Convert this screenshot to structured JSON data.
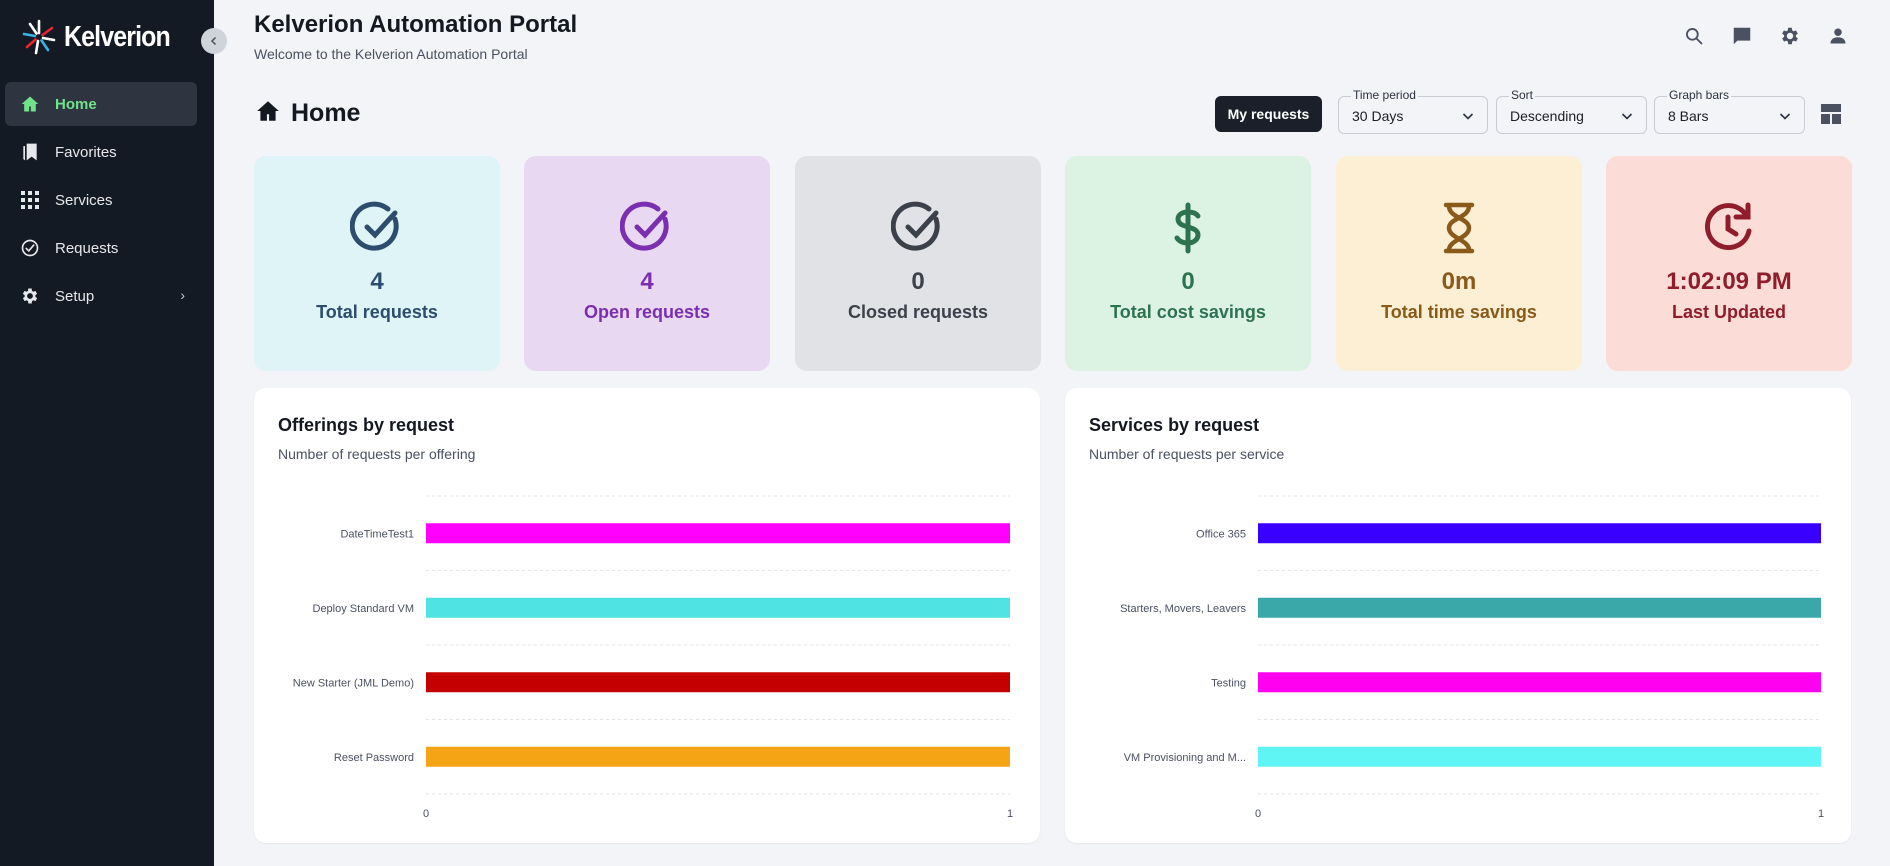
{
  "app": {
    "brand": "Kelverion",
    "title": "Kelverion Automation Portal",
    "subtitle": "Welcome to the Kelverion Automation Portal"
  },
  "sidebar": {
    "collapse_icon": "chevron-left-icon",
    "items": [
      {
        "label": "Home",
        "icon": "home-icon",
        "active": true
      },
      {
        "label": "Favorites",
        "icon": "bookmark-icon",
        "active": false
      },
      {
        "label": "Services",
        "icon": "grid-icon",
        "active": false
      },
      {
        "label": "Requests",
        "icon": "check-circle-icon",
        "active": false
      },
      {
        "label": "Setup",
        "icon": "gear-icon",
        "active": false,
        "has_submenu": true
      }
    ]
  },
  "header_icons": [
    "search-icon",
    "chat-icon",
    "gear-icon",
    "user-icon"
  ],
  "page": {
    "heading": "Home",
    "my_requests_label": "My requests",
    "filters": [
      {
        "label": "Time period",
        "value": "30 Days"
      },
      {
        "label": "Sort",
        "value": "Descending"
      },
      {
        "label": "Graph bars",
        "value": "8 Bars"
      }
    ]
  },
  "stats": [
    {
      "value": "4",
      "label": "Total requests",
      "icon": "check-circle-icon",
      "bg": "#dff4f6",
      "color": "#2d4c6e"
    },
    {
      "value": "4",
      "label": "Open requests",
      "icon": "check-circle-icon",
      "bg": "#e9d8f1",
      "color": "#7a2fb0"
    },
    {
      "value": "0",
      "label": "Closed requests",
      "icon": "check-circle-icon",
      "bg": "#e1e2e6",
      "color": "#3c4049"
    },
    {
      "value": "0",
      "label": "Total cost savings",
      "icon": "dollar-icon",
      "bg": "#dcf2e3",
      "color": "#2e7350"
    },
    {
      "value": "0m",
      "label": "Total time savings",
      "icon": "hourglass-icon",
      "bg": "#fdefd4",
      "color": "#8a5a1a"
    },
    {
      "value": "1:02:09 PM",
      "label": "Last Updated",
      "icon": "history-icon",
      "bg": "#fcdcd6",
      "color": "#8f1d2c"
    }
  ],
  "charts": [
    {
      "title": "Offerings by request",
      "subtitle": "Number of requests per offering"
    },
    {
      "title": "Services by request",
      "subtitle": "Number of requests per service"
    }
  ],
  "chart_data": [
    {
      "type": "bar",
      "orientation": "horizontal",
      "title": "Offerings by request",
      "subtitle": "Number of requests per offering",
      "categories": [
        "DateTimeTest1",
        "Deploy Standard VM",
        "New Starter (JML Demo)",
        "Reset Password"
      ],
      "values": [
        1,
        1,
        1,
        1
      ],
      "colors": [
        "#ff00ff",
        "#4fe3e3",
        "#c40000",
        "#f5a415"
      ],
      "xlim": [
        0,
        1
      ],
      "xticks": [
        "0",
        "1"
      ],
      "grid": true
    },
    {
      "type": "bar",
      "orientation": "horizontal",
      "title": "Services by request",
      "subtitle": "Number of requests per service",
      "categories": [
        "Office 365",
        "Starters, Movers, Leavers",
        "Testing",
        "VM Provisioning and M..."
      ],
      "values": [
        1,
        1,
        1,
        1
      ],
      "colors": [
        "#3a00ff",
        "#3aa8a8",
        "#ff00f0",
        "#5ff5f5"
      ],
      "xlim": [
        0,
        1
      ],
      "xticks": [
        "0",
        "1"
      ],
      "grid": true
    }
  ]
}
